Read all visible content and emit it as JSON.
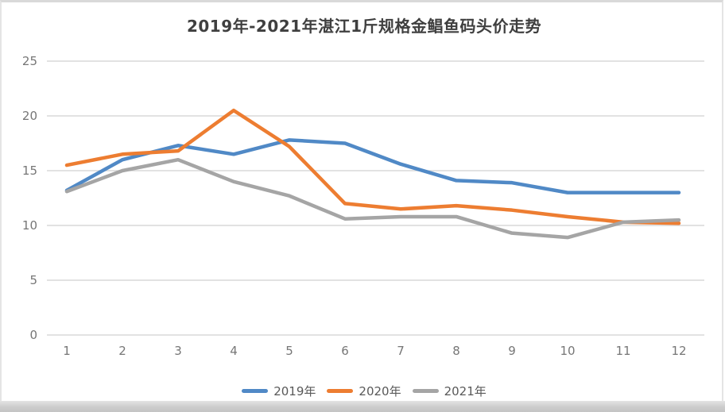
{
  "title": "2019年-2021年湛江1斤规格金鲳鱼码头价走势",
  "colors": {
    "series_2019": "#5089c6",
    "series_2020": "#ed7d31",
    "series_2021": "#a5a5a5",
    "gridline": "#d9d9d9",
    "axis_text": "#767676",
    "title_text": "#3f3f3f",
    "card_border": "#d9d9d9"
  },
  "chart_data": {
    "type": "line",
    "title": "2019年-2021年湛江1斤规格金鲳鱼码头价走势",
    "xlabel": "",
    "ylabel": "",
    "x": [
      1,
      2,
      3,
      4,
      5,
      6,
      7,
      8,
      9,
      10,
      11,
      12
    ],
    "ylim": [
      0,
      25
    ],
    "yticks": [
      0,
      5,
      10,
      15,
      20,
      25
    ],
    "grid": "horizontal",
    "legend_position": "bottom",
    "series": [
      {
        "name": "2019年",
        "color_key": "series_2019",
        "values": [
          13.2,
          16.0,
          17.3,
          16.5,
          17.8,
          17.5,
          15.6,
          14.1,
          13.9,
          13.0,
          13.0,
          13.0
        ]
      },
      {
        "name": "2020年",
        "color_key": "series_2020",
        "values": [
          15.5,
          16.5,
          16.8,
          20.5,
          17.2,
          12.0,
          11.5,
          11.8,
          11.4,
          10.8,
          10.3,
          10.2
        ]
      },
      {
        "name": "2021年",
        "color_key": "series_2021",
        "values": [
          13.1,
          15.0,
          16.0,
          14.0,
          12.7,
          10.6,
          10.8,
          10.8,
          9.3,
          8.9,
          10.3,
          10.5
        ]
      }
    ]
  }
}
